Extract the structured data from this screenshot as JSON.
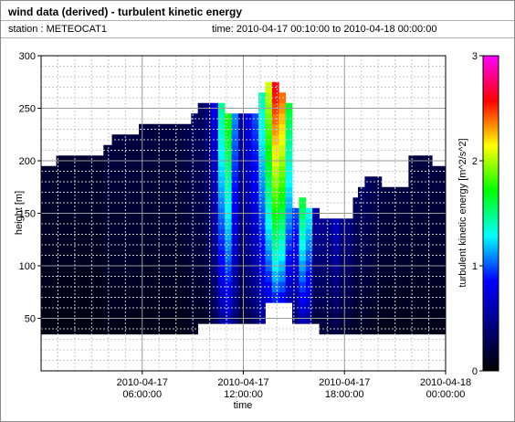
{
  "header": {
    "title": "wind data (derived) - turbulent kinetic energy",
    "station": "station : METEOCAT1",
    "time_range": "time: 2010-04-17 00:10:00 to 2010-04-18 00:00:00"
  },
  "chart_data": {
    "type": "heatmap",
    "xlabel": "time",
    "ylabel": "height [m]",
    "x_ticks": [
      {
        "value": 6,
        "line1": "2010-04-17",
        "line2": "06:00:00"
      },
      {
        "value": 12,
        "line1": "2010-04-17",
        "line2": "12:00:00"
      },
      {
        "value": 18,
        "line1": "2010-04-17",
        "line2": "18:00:00"
      },
      {
        "value": 24,
        "line1": "2010-04-18",
        "line2": "00:00:00"
      }
    ],
    "xlim_hours": [
      0,
      24
    ],
    "y_ticks": [
      50,
      100,
      150,
      200,
      250,
      300
    ],
    "ylim": [
      0,
      300
    ],
    "grid": true,
    "colorbar": {
      "label": "turbulent kinetic energy [m^2/s^2]",
      "ticks": [
        0,
        1,
        2,
        3
      ],
      "range": [
        0,
        3
      ],
      "colormap": [
        "#000000",
        "#000080",
        "#0000ff",
        "#00ffff",
        "#00ff00",
        "#ffff00",
        "#ff0000",
        "#ff00ff"
      ]
    },
    "columns": [
      {
        "t0": 0.0,
        "t1": 0.9,
        "bottom": 35,
        "top": 195,
        "tke": 0.15
      },
      {
        "t0": 0.9,
        "t1": 3.7,
        "bottom": 35,
        "top": 205,
        "tke": 0.15
      },
      {
        "t0": 3.7,
        "t1": 4.2,
        "bottom": 35,
        "top": 215,
        "tke": 0.2
      },
      {
        "t0": 4.2,
        "t1": 5.8,
        "bottom": 35,
        "top": 225,
        "tke": 0.2
      },
      {
        "t0": 5.8,
        "t1": 8.5,
        "bottom": 35,
        "top": 235,
        "tke": 0.2
      },
      {
        "t0": 8.5,
        "t1": 8.9,
        "bottom": 35,
        "top": 235,
        "tke": 0.25
      },
      {
        "t0": 8.9,
        "t1": 9.3,
        "bottom": 35,
        "top": 245,
        "tke": 0.3
      },
      {
        "t0": 9.3,
        "t1": 9.7,
        "bottom": 45,
        "top": 255,
        "tke": 0.3
      },
      {
        "t0": 9.7,
        "t1": 10.1,
        "bottom": 45,
        "top": 255,
        "tke": 0.4
      },
      {
        "t0": 10.1,
        "t1": 10.5,
        "bottom": 45,
        "top": 255,
        "tke": 0.7
      },
      {
        "t0": 10.5,
        "t1": 10.9,
        "bottom": 45,
        "top": 255,
        "tke": 1.35
      },
      {
        "t0": 10.9,
        "t1": 11.3,
        "bottom": 45,
        "top": 245,
        "tke": 1.6
      },
      {
        "t0": 11.3,
        "t1": 11.7,
        "bottom": 45,
        "top": 245,
        "tke": 1.0
      },
      {
        "t0": 11.7,
        "t1": 12.1,
        "bottom": 45,
        "top": 245,
        "tke": 0.5
      },
      {
        "t0": 12.1,
        "t1": 12.5,
        "bottom": 45,
        "top": 245,
        "tke": 0.7
      },
      {
        "t0": 12.5,
        "t1": 12.9,
        "bottom": 45,
        "top": 245,
        "tke": 0.9
      },
      {
        "t0": 12.9,
        "t1": 13.3,
        "bottom": 45,
        "top": 265,
        "tke": 1.3
      },
      {
        "t0": 13.3,
        "t1": 13.7,
        "bottom": 65,
        "top": 275,
        "tke": 1.9
      },
      {
        "t0": 13.7,
        "t1": 14.1,
        "bottom": 65,
        "top": 275,
        "tke": 2.4
      },
      {
        "t0": 14.1,
        "t1": 14.5,
        "bottom": 65,
        "top": 265,
        "tke": 2.2
      },
      {
        "t0": 14.5,
        "t1": 14.9,
        "bottom": 65,
        "top": 255,
        "tke": 1.5
      },
      {
        "t0": 14.9,
        "t1": 15.3,
        "bottom": 45,
        "top": 155,
        "tke": 0.9
      },
      {
        "t0": 15.3,
        "t1": 15.7,
        "bottom": 45,
        "top": 165,
        "tke": 1.5
      },
      {
        "t0": 15.7,
        "t1": 16.1,
        "bottom": 45,
        "top": 155,
        "tke": 1.2
      },
      {
        "t0": 16.1,
        "t1": 16.5,
        "bottom": 45,
        "top": 155,
        "tke": 0.5
      },
      {
        "t0": 16.5,
        "t1": 17.3,
        "bottom": 35,
        "top": 145,
        "tke": 0.45
      },
      {
        "t0": 17.3,
        "t1": 17.7,
        "bottom": 35,
        "top": 145,
        "tke": 0.6
      },
      {
        "t0": 17.7,
        "t1": 18.5,
        "bottom": 35,
        "top": 145,
        "tke": 0.4
      },
      {
        "t0": 18.5,
        "t1": 18.8,
        "bottom": 35,
        "top": 165,
        "tke": 0.3
      },
      {
        "t0": 18.8,
        "t1": 19.2,
        "bottom": 35,
        "top": 175,
        "tke": 0.3
      },
      {
        "t0": 19.2,
        "t1": 19.6,
        "bottom": 35,
        "top": 185,
        "tke": 0.3
      },
      {
        "t0": 19.6,
        "t1": 20.2,
        "bottom": 35,
        "top": 185,
        "tke": 0.25
      },
      {
        "t0": 20.2,
        "t1": 21.8,
        "bottom": 35,
        "top": 175,
        "tke": 0.2
      },
      {
        "t0": 21.8,
        "t1": 23.2,
        "bottom": 35,
        "top": 205,
        "tke": 0.2
      },
      {
        "t0": 23.2,
        "t1": 24.0,
        "bottom": 35,
        "top": 195,
        "tke": 0.2
      }
    ]
  }
}
